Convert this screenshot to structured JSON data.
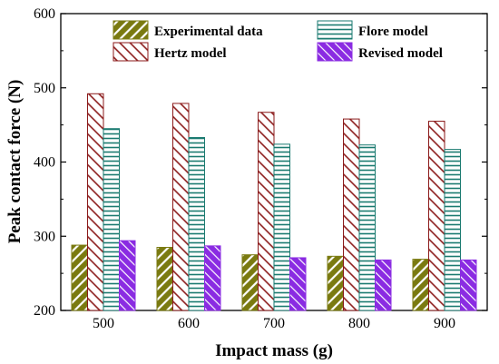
{
  "chart_data": {
    "type": "bar",
    "xlabel": "Impact mass (g)",
    "ylabel": "Peak contact force (N)",
    "categories": [
      "500",
      "600",
      "700",
      "800",
      "900"
    ],
    "ylim": [
      200,
      600
    ],
    "yticks": [
      200,
      300,
      400,
      500,
      600
    ],
    "grid": false,
    "legend_position": "top",
    "series": [
      {
        "name": "Experimental data",
        "values": [
          288,
          285,
          275,
          273,
          269
        ],
        "color": "#7a7a10",
        "pattern": "diagonal-forward"
      },
      {
        "name": "Hertz model",
        "values": [
          492,
          479,
          467,
          458,
          455
        ],
        "color": "#8b1a1a",
        "pattern": "diagonal-back"
      },
      {
        "name": "Flore model",
        "values": [
          445,
          433,
          424,
          423,
          417
        ],
        "color": "#1a7a70",
        "pattern": "horizontal"
      },
      {
        "name": "Revised model",
        "values": [
          294,
          287,
          271,
          268,
          268
        ],
        "color": "#8a2be2",
        "pattern": "diagonal-back-dense"
      }
    ],
    "legend_order": [
      "Experimental data",
      "Flore model",
      "Hertz model",
      "Revised model"
    ]
  }
}
